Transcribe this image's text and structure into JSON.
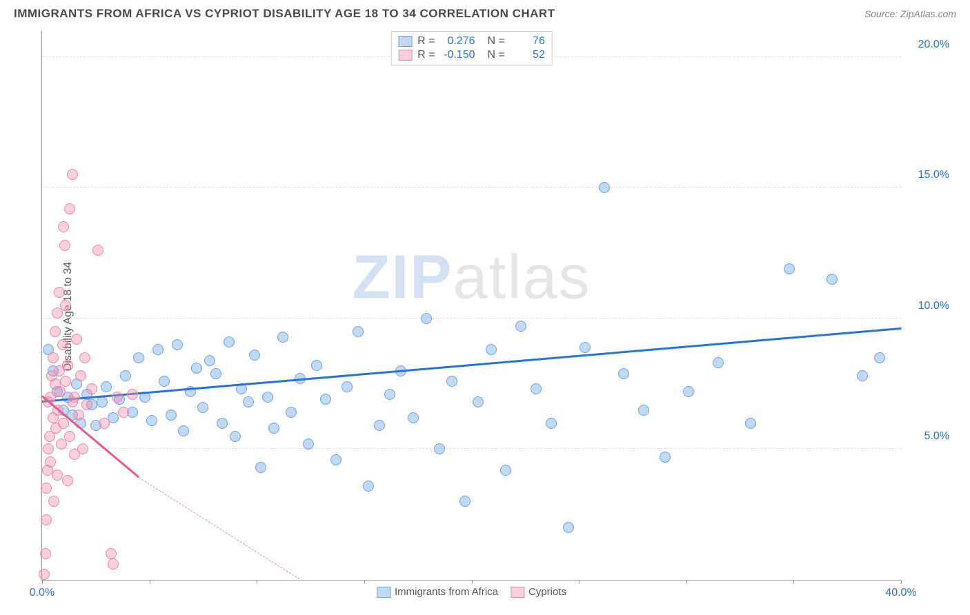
{
  "header": {
    "title": "IMMIGRANTS FROM AFRICA VS CYPRIOT DISABILITY AGE 18 TO 34 CORRELATION CHART",
    "source_prefix": "Source: ",
    "source_link": "ZipAtlas.com"
  },
  "watermark": {
    "zip": "ZIP",
    "atlas": "atlas"
  },
  "chart": {
    "type": "scatter",
    "ylabel": "Disability Age 18 to 34",
    "xlim": [
      0,
      40
    ],
    "ylim": [
      0,
      21
    ],
    "x_ticks": [
      0,
      5,
      10,
      15,
      20,
      25,
      30,
      35,
      40
    ],
    "x_tick_labels": {
      "0": "0.0%",
      "40": "40.0%"
    },
    "y_ticks": [
      5,
      10,
      15,
      20
    ],
    "y_tick_labels": {
      "5": "5.0%",
      "10": "10.0%",
      "15": "15.0%",
      "20": "20.0%"
    },
    "grid_color": "#dddddd",
    "axis_color": "#999999",
    "tick_label_color": "#2873d6",
    "series": [
      {
        "name": "Immigrants from Africa",
        "fill": "rgba(120,170,230,0.45)",
        "stroke": "#6fa3e0",
        "trend_color": "#2873d6",
        "trend": {
          "x1": 0,
          "y1": 6.8,
          "x2": 40,
          "y2": 9.6,
          "dashed_after_x": 40
        },
        "R": "0.276",
        "N": "76",
        "points": [
          [
            0.3,
            8.8
          ],
          [
            0.5,
            8.0
          ],
          [
            0.7,
            7.2
          ],
          [
            1.0,
            6.5
          ],
          [
            1.2,
            7.0
          ],
          [
            1.4,
            6.3
          ],
          [
            1.6,
            7.5
          ],
          [
            1.8,
            6.0
          ],
          [
            2.1,
            7.1
          ],
          [
            2.3,
            6.7
          ],
          [
            2.5,
            5.9
          ],
          [
            2.8,
            6.8
          ],
          [
            3.0,
            7.4
          ],
          [
            3.3,
            6.2
          ],
          [
            3.6,
            6.9
          ],
          [
            3.9,
            7.8
          ],
          [
            4.2,
            6.4
          ],
          [
            4.5,
            8.5
          ],
          [
            4.8,
            7.0
          ],
          [
            5.1,
            6.1
          ],
          [
            5.4,
            8.8
          ],
          [
            5.7,
            7.6
          ],
          [
            6.0,
            6.3
          ],
          [
            6.3,
            9.0
          ],
          [
            6.6,
            5.7
          ],
          [
            6.9,
            7.2
          ],
          [
            7.2,
            8.1
          ],
          [
            7.5,
            6.6
          ],
          [
            7.8,
            8.4
          ],
          [
            8.1,
            7.9
          ],
          [
            8.4,
            6.0
          ],
          [
            8.7,
            9.1
          ],
          [
            9.0,
            5.5
          ],
          [
            9.3,
            7.3
          ],
          [
            9.6,
            6.8
          ],
          [
            9.9,
            8.6
          ],
          [
            10.2,
            4.3
          ],
          [
            10.5,
            7.0
          ],
          [
            10.8,
            5.8
          ],
          [
            11.2,
            9.3
          ],
          [
            11.6,
            6.4
          ],
          [
            12.0,
            7.7
          ],
          [
            12.4,
            5.2
          ],
          [
            12.8,
            8.2
          ],
          [
            13.2,
            6.9
          ],
          [
            13.7,
            4.6
          ],
          [
            14.2,
            7.4
          ],
          [
            14.7,
            9.5
          ],
          [
            15.2,
            3.6
          ],
          [
            15.7,
            5.9
          ],
          [
            16.2,
            7.1
          ],
          [
            16.7,
            8.0
          ],
          [
            17.3,
            6.2
          ],
          [
            17.9,
            10.0
          ],
          [
            18.5,
            5.0
          ],
          [
            19.1,
            7.6
          ],
          [
            19.7,
            3.0
          ],
          [
            20.3,
            6.8
          ],
          [
            20.9,
            8.8
          ],
          [
            21.6,
            4.2
          ],
          [
            22.3,
            9.7
          ],
          [
            23.0,
            7.3
          ],
          [
            23.7,
            6.0
          ],
          [
            24.5,
            2.0
          ],
          [
            25.3,
            8.9
          ],
          [
            26.2,
            15.0
          ],
          [
            27.1,
            7.9
          ],
          [
            28.0,
            6.5
          ],
          [
            29.0,
            4.7
          ],
          [
            30.1,
            7.2
          ],
          [
            31.5,
            8.3
          ],
          [
            33.0,
            6.0
          ],
          [
            34.8,
            11.9
          ],
          [
            36.8,
            11.5
          ],
          [
            38.2,
            7.8
          ],
          [
            39.0,
            8.5
          ]
        ]
      },
      {
        "name": "Cypriots",
        "fill": "rgba(240,140,170,0.40)",
        "stroke": "#e888aa",
        "trend_color": "#e85a8a",
        "trend": {
          "x1": 0,
          "y1": 7.0,
          "x2": 4.5,
          "y2": 3.9,
          "dashed_after_x": 4.5,
          "dash_to_x": 12,
          "dash_to_y": -1.5
        },
        "R": "-0.150",
        "N": "52",
        "points": [
          [
            0.1,
            0.2
          ],
          [
            0.15,
            1.0
          ],
          [
            0.2,
            2.3
          ],
          [
            0.2,
            3.5
          ],
          [
            0.25,
            4.2
          ],
          [
            0.3,
            5.0
          ],
          [
            0.3,
            6.8
          ],
          [
            0.35,
            5.5
          ],
          [
            0.4,
            7.0
          ],
          [
            0.4,
            4.5
          ],
          [
            0.45,
            7.8
          ],
          [
            0.5,
            6.2
          ],
          [
            0.5,
            8.5
          ],
          [
            0.55,
            3.0
          ],
          [
            0.6,
            7.5
          ],
          [
            0.6,
            9.5
          ],
          [
            0.65,
            5.8
          ],
          [
            0.7,
            10.2
          ],
          [
            0.7,
            4.0
          ],
          [
            0.75,
            6.5
          ],
          [
            0.8,
            8.0
          ],
          [
            0.8,
            11.0
          ],
          [
            0.85,
            7.2
          ],
          [
            0.9,
            5.2
          ],
          [
            0.95,
            9.0
          ],
          [
            1.0,
            6.0
          ],
          [
            1.0,
            13.5
          ],
          [
            1.05,
            12.8
          ],
          [
            1.1,
            7.6
          ],
          [
            1.1,
            10.5
          ],
          [
            1.2,
            8.2
          ],
          [
            1.2,
            3.8
          ],
          [
            1.3,
            5.5
          ],
          [
            1.3,
            14.2
          ],
          [
            1.4,
            6.8
          ],
          [
            1.4,
            15.5
          ],
          [
            1.5,
            7.0
          ],
          [
            1.5,
            4.8
          ],
          [
            1.6,
            9.2
          ],
          [
            1.7,
            6.3
          ],
          [
            1.8,
            7.8
          ],
          [
            1.9,
            5.0
          ],
          [
            2.0,
            8.5
          ],
          [
            2.1,
            6.7
          ],
          [
            2.3,
            7.3
          ],
          [
            2.6,
            12.6
          ],
          [
            2.9,
            6.0
          ],
          [
            3.2,
            1.0
          ],
          [
            3.3,
            0.6
          ],
          [
            3.5,
            7.0
          ],
          [
            3.8,
            6.4
          ],
          [
            4.2,
            7.1
          ]
        ]
      }
    ],
    "stat_legend_labels": {
      "R": "R =",
      "N": "N ="
    },
    "bottom_legend": [
      {
        "label": "Immigrants from Africa",
        "fill": "rgba(120,170,230,0.45)",
        "stroke": "#6fa3e0"
      },
      {
        "label": "Cypriots",
        "fill": "rgba(240,140,170,0.40)",
        "stroke": "#e888aa"
      }
    ],
    "point_radius": 8
  }
}
